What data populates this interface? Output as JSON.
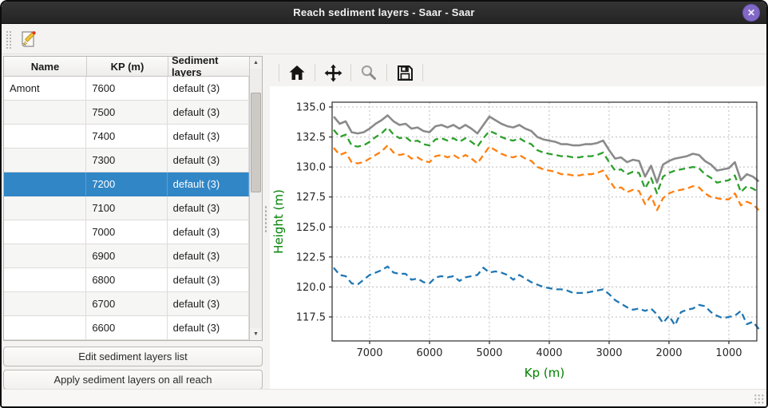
{
  "window": {
    "title": "Reach sediment layers - Saar - Saar",
    "close_glyph": "✕"
  },
  "table": {
    "headers": [
      "Name",
      "KP (m)",
      "Sediment layers"
    ],
    "rows": [
      [
        "Amont",
        "7600",
        "default (3)"
      ],
      [
        "",
        "7500",
        "default (3)"
      ],
      [
        "",
        "7400",
        "default (3)"
      ],
      [
        "",
        "7300",
        "default (3)"
      ],
      [
        "",
        "7200",
        "default (3)"
      ],
      [
        "",
        "7100",
        "default (3)"
      ],
      [
        "",
        "7000",
        "default (3)"
      ],
      [
        "",
        "6900",
        "default (3)"
      ],
      [
        "",
        "6800",
        "default (3)"
      ],
      [
        "",
        "6700",
        "default (3)"
      ],
      [
        "",
        "6600",
        "default (3)"
      ]
    ],
    "selected_index": 4,
    "selection_color": "#3186c6"
  },
  "buttons": {
    "edit": "Edit sediment layers list",
    "apply": "Apply sediment layers on all reach"
  },
  "chart_data": {
    "type": "line",
    "xlabel": "Kp (m)",
    "ylabel": "Height (m)",
    "axis_label_color": "#008000",
    "grid": true,
    "x_reversed": true,
    "xlim": [
      7627,
      533
    ],
    "ylim": [
      115.5,
      135.4
    ],
    "xticks": [
      7000,
      6000,
      5000,
      4000,
      3000,
      2000,
      1000
    ],
    "yticks": [
      135.0,
      132.5,
      130.0,
      127.5,
      125.0,
      122.5,
      120.0,
      117.5
    ],
    "x": [
      7600,
      7500,
      7400,
      7300,
      7200,
      7100,
      7000,
      6900,
      6800,
      6700,
      6600,
      6500,
      6400,
      6300,
      6200,
      6100,
      6000,
      5900,
      5800,
      5700,
      5600,
      5500,
      5400,
      5300,
      5200,
      5100,
      5000,
      4900,
      4800,
      4700,
      4600,
      4500,
      4400,
      4300,
      4200,
      4100,
      4000,
      3900,
      3800,
      3700,
      3600,
      3500,
      3400,
      3300,
      3200,
      3100,
      3000,
      2900,
      2800,
      2700,
      2600,
      2500,
      2400,
      2300,
      2200,
      2100,
      2000,
      1900,
      1800,
      1700,
      1600,
      1500,
      1400,
      1300,
      1200,
      1100,
      1000,
      900,
      800,
      700,
      600,
      500
    ],
    "series": [
      {
        "name": "profile-top-gray",
        "color": "#8a8a8a",
        "style": "solid",
        "width": 2.6,
        "values": [
          134.2,
          133.6,
          133.8,
          132.9,
          132.8,
          132.9,
          133.2,
          133.6,
          133.9,
          134.3,
          133.8,
          133.5,
          133.6,
          133.2,
          133.3,
          133.0,
          132.9,
          133.4,
          133.5,
          133.3,
          133.5,
          133.2,
          133.5,
          133.2,
          132.8,
          133.5,
          134.2,
          133.9,
          133.6,
          133.4,
          133.3,
          133.5,
          133.2,
          133.0,
          132.5,
          132.3,
          132.2,
          132.1,
          131.9,
          131.9,
          131.8,
          131.8,
          131.9,
          131.9,
          132.0,
          132.2,
          131.4,
          130.7,
          130.8,
          130.4,
          130.6,
          130.5,
          129.2,
          130.1,
          128.7,
          130.2,
          130.5,
          130.7,
          130.8,
          130.9,
          131.1,
          131.0,
          130.5,
          130.2,
          129.7,
          129.8,
          129.9,
          130.4,
          128.9,
          129.4,
          129.2,
          128.8
        ]
      },
      {
        "name": "sediment-layer-green",
        "color": "#2ca02c",
        "style": "dashed",
        "width": 2.3,
        "values": [
          133.1,
          132.5,
          132.7,
          131.8,
          131.7,
          131.8,
          132.1,
          132.5,
          132.8,
          133.3,
          132.7,
          132.4,
          132.5,
          132.1,
          132.2,
          131.9,
          131.8,
          132.3,
          132.4,
          132.2,
          132.4,
          132.1,
          132.4,
          132.1,
          131.7,
          132.4,
          133.0,
          132.8,
          132.5,
          132.3,
          132.2,
          132.4,
          132.1,
          131.9,
          131.4,
          131.2,
          131.1,
          131.0,
          130.9,
          130.9,
          130.8,
          130.8,
          130.9,
          130.9,
          131.0,
          131.2,
          130.4,
          129.7,
          129.8,
          129.4,
          129.6,
          129.5,
          128.2,
          129.1,
          127.8,
          129.2,
          129.5,
          129.7,
          129.8,
          129.9,
          130.0,
          129.9,
          129.4,
          129.1,
          128.7,
          128.8,
          128.9,
          129.3,
          127.9,
          128.4,
          128.2,
          127.9
        ]
      },
      {
        "name": "sediment-layer-orange",
        "color": "#ff7f0e",
        "style": "dashed",
        "width": 2.3,
        "values": [
          131.6,
          131.0,
          131.2,
          130.4,
          130.3,
          130.4,
          130.7,
          131.0,
          131.3,
          131.8,
          131.2,
          131.0,
          131.1,
          130.7,
          130.8,
          130.5,
          130.4,
          130.9,
          131.0,
          130.8,
          131.0,
          130.7,
          131.0,
          130.7,
          130.3,
          131.0,
          131.7,
          131.4,
          131.1,
          130.9,
          130.8,
          131.0,
          130.7,
          130.5,
          130.0,
          129.8,
          129.7,
          129.6,
          129.4,
          129.4,
          129.3,
          129.3,
          129.4,
          129.4,
          129.5,
          129.7,
          128.9,
          128.2,
          128.3,
          127.9,
          128.1,
          128.0,
          126.9,
          127.6,
          126.4,
          127.4,
          127.8,
          128.0,
          128.1,
          128.2,
          128.4,
          128.3,
          127.8,
          127.5,
          127.4,
          127.3,
          127.3,
          127.8,
          126.8,
          127.1,
          126.9,
          126.4
        ]
      },
      {
        "name": "sediment-layer-blue",
        "color": "#1f77b4",
        "style": "dashed",
        "width": 2.3,
        "values": [
          121.6,
          121.0,
          120.9,
          120.3,
          120.2,
          120.6,
          121.0,
          121.2,
          121.4,
          121.7,
          121.2,
          121.1,
          121.1,
          120.6,
          120.7,
          120.4,
          120.3,
          120.8,
          120.9,
          120.8,
          120.9,
          120.5,
          120.8,
          120.9,
          121.0,
          121.6,
          121.2,
          121.3,
          121.2,
          121.0,
          120.6,
          121.0,
          120.7,
          120.4,
          120.2,
          120.0,
          119.9,
          119.8,
          119.8,
          119.7,
          119.5,
          119.5,
          119.5,
          119.6,
          119.7,
          119.8,
          119.4,
          118.9,
          118.6,
          118.3,
          118.1,
          118.2,
          118.0,
          118.2,
          117.7,
          117.0,
          117.6,
          116.8,
          117.9,
          118.1,
          118.2,
          118.5,
          118.4,
          117.9,
          117.6,
          117.4,
          117.5,
          117.6,
          118.0,
          116.9,
          117.1,
          116.5
        ]
      }
    ]
  }
}
